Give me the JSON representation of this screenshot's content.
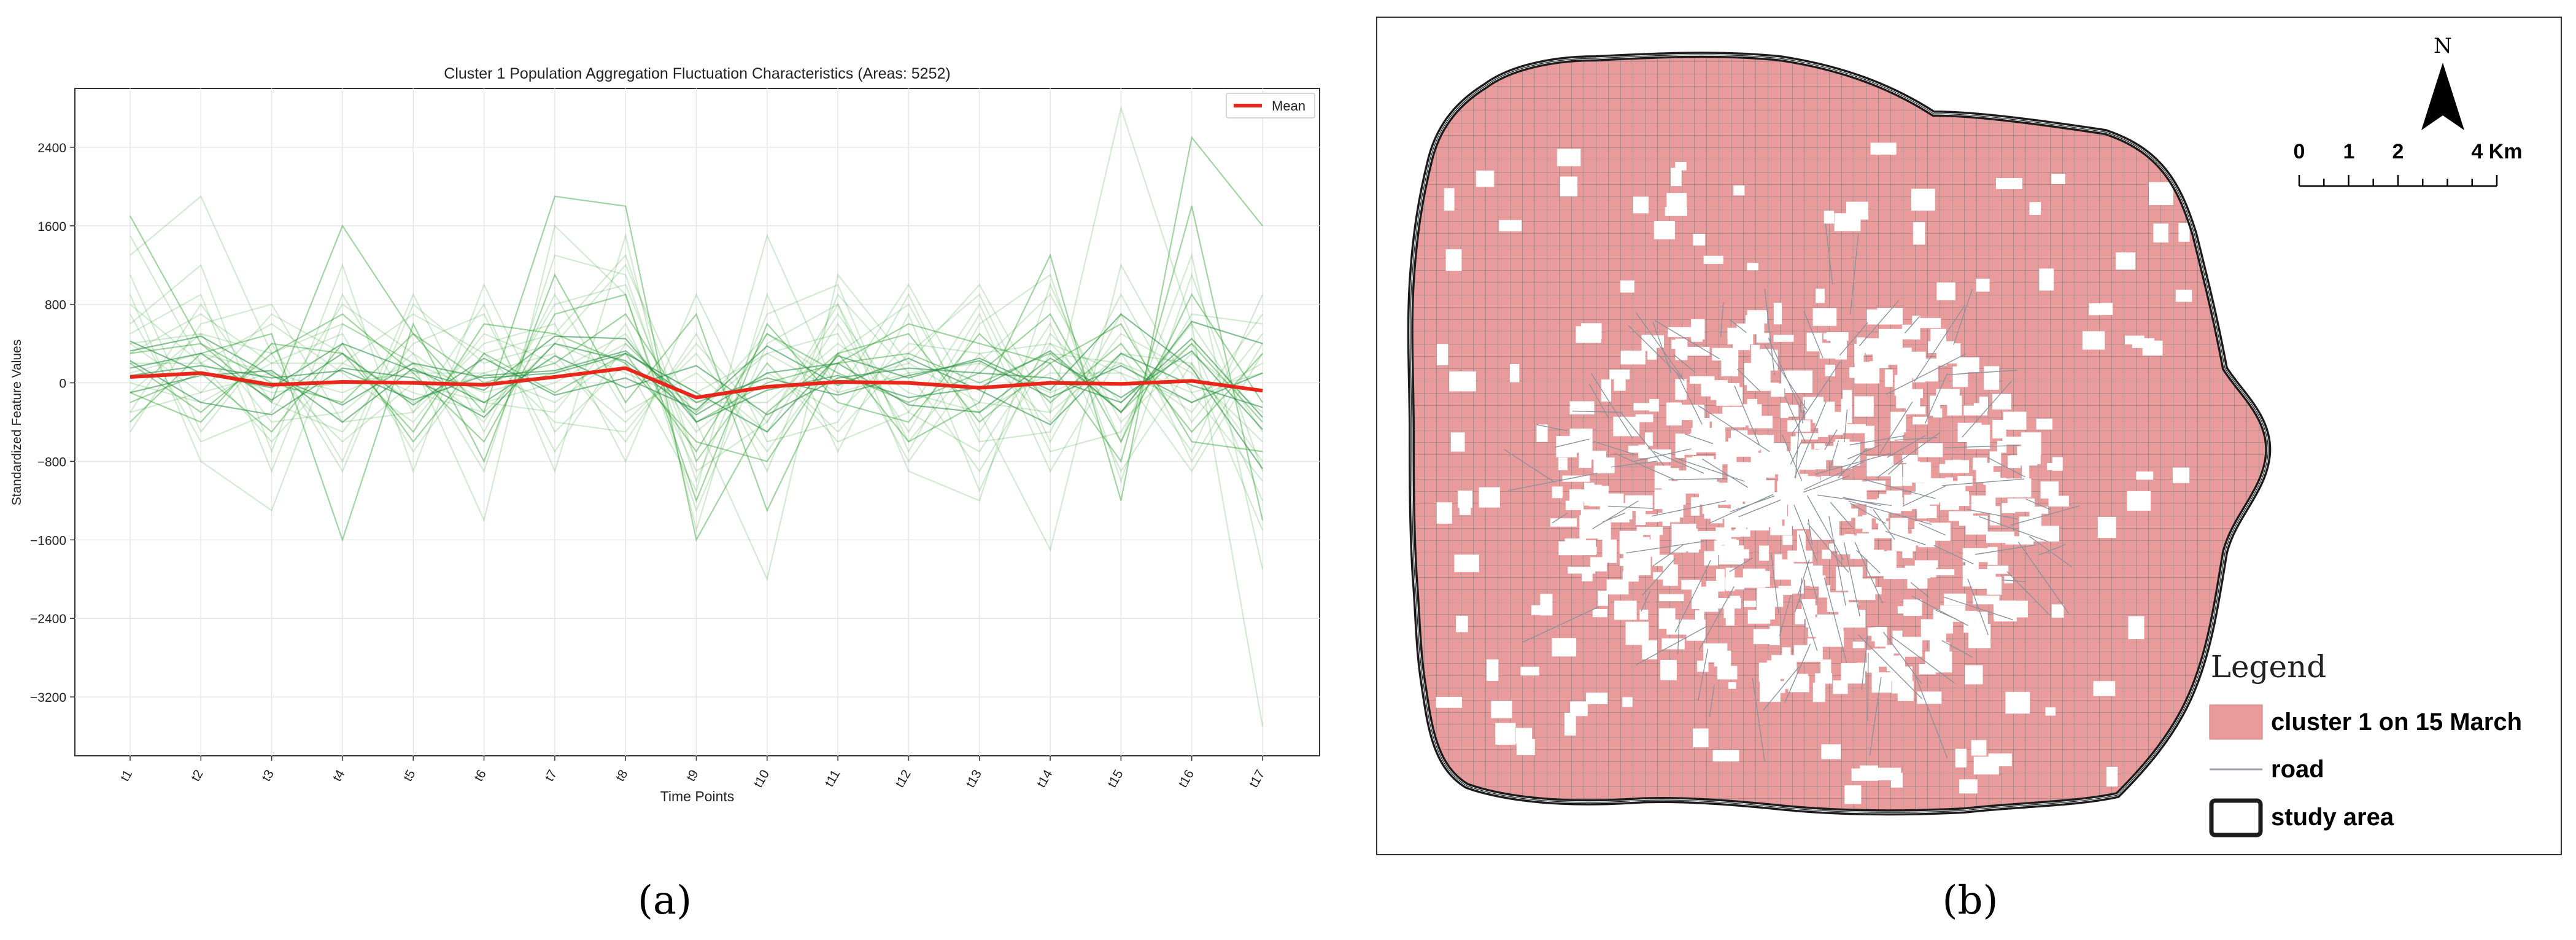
{
  "panel_a": {
    "label": "(a)",
    "chart_data": {
      "type": "line",
      "title": "Cluster 1 Population Aggregation Fluctuation Characteristics (Areas: 5252)",
      "xlabel": "Time Points",
      "ylabel": "Standardized Feature Values",
      "categories": [
        "t1",
        "t2",
        "t3",
        "t4",
        "t5",
        "t6",
        "t7",
        "t8",
        "t9",
        "t10",
        "t11",
        "t12",
        "t13",
        "t14",
        "t15",
        "t16",
        "t17"
      ],
      "yticks": [
        2400,
        1600,
        800,
        0,
        -800,
        -1600,
        -2400,
        -3200
      ],
      "ylim": [
        -3800,
        3000
      ],
      "grid": true,
      "legend": "top-right",
      "series": [
        {
          "name": "Mean",
          "color": "#e8261a",
          "values": [
            60,
            100,
            -20,
            10,
            0,
            -20,
            60,
            150,
            -150,
            -40,
            10,
            0,
            -50,
            0,
            -10,
            20,
            -80
          ]
        }
      ],
      "individual_traces_color": "#2ca02c",
      "individual_traces": [
        [
          1700,
          400,
          -200,
          1600,
          500,
          -300,
          1900,
          1800,
          -1600,
          -300,
          300,
          -600,
          -200,
          1300,
          -1200,
          2500,
          1600
        ],
        [
          1300,
          1900,
          300,
          -900,
          800,
          200,
          400,
          1200,
          -400,
          -2000,
          1100,
          200,
          1000,
          -300,
          2800,
          600,
          -3500
        ],
        [
          900,
          -800,
          -1300,
          600,
          200,
          -1400,
          1600,
          900,
          -1300,
          400,
          800,
          -900,
          -1200,
          1000,
          -600,
          1300,
          -1900
        ],
        [
          600,
          1200,
          -700,
          1200,
          -900,
          1000,
          -500,
          200,
          -1100,
          1500,
          -100,
          1000,
          -300,
          -1700,
          1200,
          -100,
          -1000
        ],
        [
          -400,
          300,
          500,
          -1600,
          600,
          -800,
          1100,
          -200,
          700,
          -1300,
          200,
          600,
          400,
          200,
          -800,
          1800,
          -1400
        ],
        [
          300,
          700,
          200,
          500,
          -700,
          300,
          500,
          1300,
          -800,
          200,
          -500,
          300,
          900,
          -600,
          700,
          -800,
          400
        ],
        [
          -100,
          500,
          -400,
          -300,
          300,
          -200,
          -300,
          600,
          -900,
          -400,
          700,
          -300,
          -700,
          400,
          -300,
          600,
          -500
        ],
        [
          800,
          200,
          600,
          100,
          -400,
          500,
          200,
          -400,
          300,
          -700,
          300,
          800,
          -500,
          600,
          -900,
          200,
          -800
        ],
        [
          200,
          -300,
          300,
          700,
          100,
          -600,
          700,
          900,
          -1200,
          600,
          -200,
          -400,
          500,
          -200,
          400,
          -500,
          300
        ],
        [
          -300,
          800,
          -200,
          -500,
          400,
          700,
          -700,
          400,
          -300,
          300,
          500,
          -800,
          200,
          900,
          -400,
          300,
          -300
        ],
        [
          400,
          -100,
          700,
          300,
          -200,
          100,
          300,
          -600,
          500,
          -900,
          900,
          100,
          -900,
          300,
          200,
          -300,
          700
        ],
        [
          100,
          300,
          100,
          -100,
          200,
          -100,
          100,
          500,
          -500,
          100,
          -300,
          400,
          300,
          -400,
          500,
          100,
          -600
        ],
        [
          -200,
          100,
          -500,
          400,
          -600,
          300,
          -100,
          300,
          -700,
          500,
          100,
          -200,
          100,
          700,
          -600,
          900,
          -200
        ],
        [
          1100,
          -500,
          400,
          -800,
          900,
          -500,
          900,
          -300,
          100,
          -500,
          600,
          -500,
          700,
          -900,
          300,
          -700,
          900
        ],
        [
          500,
          900,
          -900,
          900,
          -300,
          800,
          -900,
          1500,
          -1500,
          900,
          -700,
          700,
          -1100,
          500,
          -200,
          400,
          -1200
        ],
        [
          0,
          -200,
          200,
          200,
          -100,
          -300,
          400,
          100,
          -200,
          -200,
          400,
          -100,
          -300,
          100,
          100,
          -200,
          200
        ],
        [
          300,
          400,
          0,
          -200,
          500,
          0,
          200,
          700,
          -400,
          0,
          200,
          300,
          0,
          300,
          -300,
          400,
          -400
        ],
        [
          -500,
          600,
          800,
          -400,
          -300,
          400,
          600,
          -800,
          900,
          -600,
          -400,
          900,
          -600,
          -500,
          900,
          -400,
          500
        ],
        [
          700,
          -600,
          -300,
          800,
          300,
          -900,
          1300,
          1100,
          -1000,
          700,
          1000,
          -700,
          600,
          1100,
          -1000,
          1100,
          -900
        ],
        [
          200,
          200,
          -100,
          0,
          100,
          100,
          -200,
          300,
          -100,
          300,
          -100,
          100,
          200,
          -100,
          200,
          -100,
          100
        ],
        [
          -100,
          -400,
          400,
          300,
          -500,
          600,
          500,
          200,
          -600,
          -800,
          300,
          500,
          -400,
          200,
          600,
          -600,
          -700
        ],
        [
          400,
          500,
          300,
          600,
          200,
          -400,
          800,
          1000,
          -800,
          200,
          -600,
          -300,
          800,
          -700,
          -500,
          700,
          600
        ],
        [
          1500,
          200,
          -600,
          200,
          700,
          300,
          -400,
          -500,
          400,
          -400,
          800,
          -600,
          300,
          400,
          100,
          -900,
          300
        ],
        [
          -300,
          -100,
          100,
          -600,
          0,
          -200,
          0,
          400,
          -300,
          500,
          0,
          200,
          -200,
          -300,
          300,
          200,
          -1500
        ]
      ]
    }
  },
  "panel_b": {
    "label": "(b)",
    "north": "N",
    "scale_labels": [
      "0",
      "1",
      "2",
      "4 Km"
    ],
    "legend_title": "Legend",
    "legend_items": [
      {
        "label": "cluster 1 on 15 March",
        "color": "#e99b9b"
      },
      {
        "label": "road",
        "color": "#9aa3ad"
      },
      {
        "label": "study area",
        "color": "#1c1c1c"
      }
    ]
  }
}
